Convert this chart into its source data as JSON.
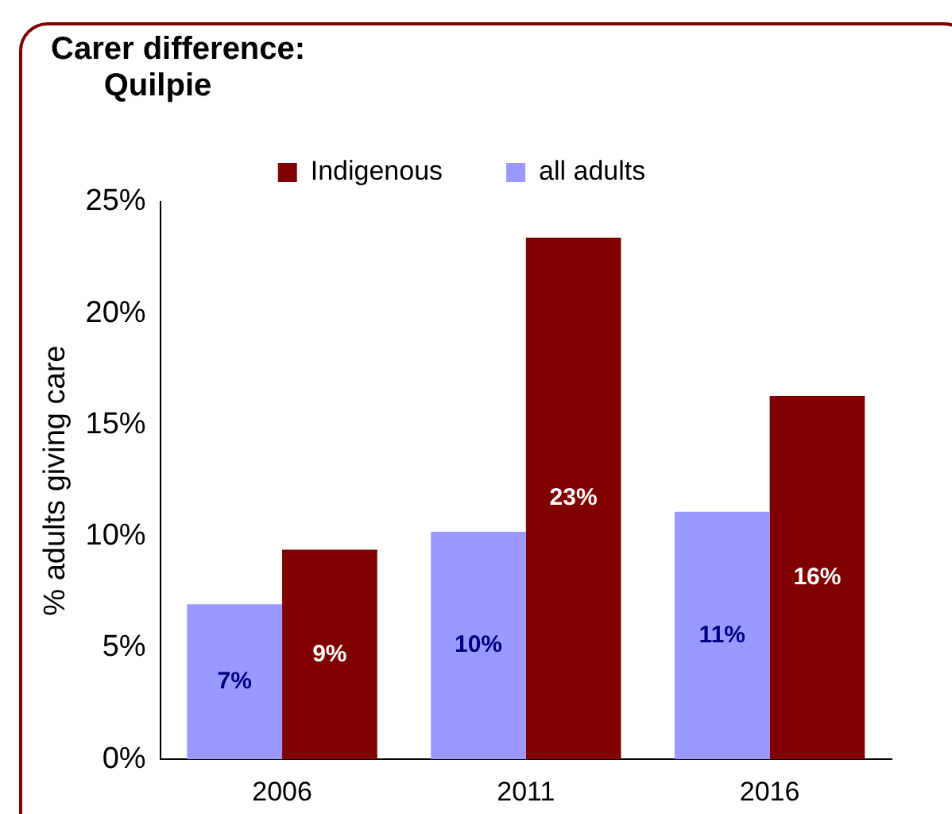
{
  "chart_data": {
    "type": "bar",
    "title": "Carer difference:\nQuilpie",
    "ylabel": "% adults giving care",
    "categories": [
      "2006",
      "2011",
      "2016"
    ],
    "series": [
      {
        "name": "all adults",
        "color": "#9999ff",
        "values": [
          6.95,
          10.2,
          11.1
        ],
        "value_labels": [
          "7%",
          "10%",
          "11%"
        ]
      },
      {
        "name": "Indigenous",
        "color": "#800000",
        "values": [
          9.4,
          23.4,
          16.3
        ],
        "value_labels": [
          "9%",
          "23%",
          "16%"
        ]
      }
    ],
    "ylim": [
      0,
      25
    ],
    "yticks": [
      {
        "value": 0,
        "label": "0%"
      },
      {
        "value": 5,
        "label": "5%"
      },
      {
        "value": 10,
        "label": "10%"
      },
      {
        "value": 15,
        "label": "15%"
      },
      {
        "value": 20,
        "label": "20%"
      },
      {
        "value": 25,
        "label": "25%"
      }
    ],
    "grid": false,
    "legend": "top"
  }
}
